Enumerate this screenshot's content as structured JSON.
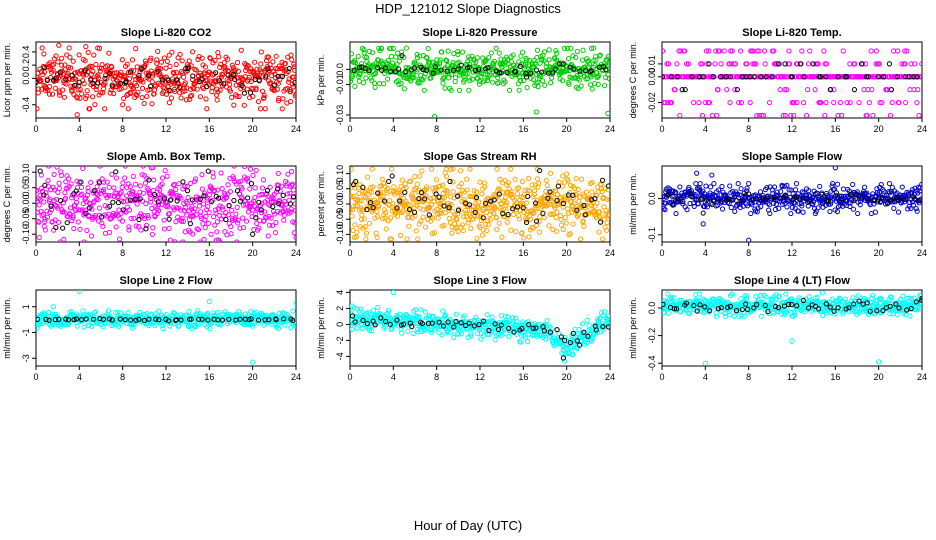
{
  "figure": {
    "title": "HDP_121012  Slope Diagnostics",
    "xlabel": "Hour of Day (UTC)"
  },
  "chart_data": [
    {
      "type": "scatter",
      "title": "Slope Li-820 CO2",
      "ylabel": "Licor ppm per min.",
      "xlim": [
        0,
        24
      ],
      "xticks": [
        "0",
        "4",
        "8",
        "12",
        "16",
        "20",
        "24"
      ],
      "ylim": [
        -0.6,
        0.55
      ],
      "yticks": [
        -0.4,
        0.0,
        0.2,
        0.4
      ],
      "ytick_labels": [
        "-0.4",
        "0.0",
        "0.2",
        "0.4"
      ],
      "series": [
        {
          "name": "all",
          "color": "#ff0000",
          "n": 560,
          "center": 0.0,
          "spread": 0.2,
          "outliers": [
            [
              2.1,
              0.5
            ],
            [
              3.8,
              -0.55
            ],
            [
              4.6,
              0.48
            ],
            [
              9.2,
              0.45
            ],
            [
              23.5,
              -0.35
            ]
          ]
        },
        {
          "name": "hourly",
          "color": "#000000",
          "n": 55,
          "center": 0.0,
          "spread": 0.1,
          "outliers": []
        }
      ]
    },
    {
      "type": "scatter",
      "title": "Slope Li-820 Pressure",
      "ylabel": "kPa per min.",
      "xlim": [
        0,
        24
      ],
      "xticks": [
        "0",
        "4",
        "8",
        "12",
        "16",
        "20",
        "24"
      ],
      "ylim": [
        -0.032,
        0.018
      ],
      "yticks": [
        -0.03,
        -0.01,
        0.0
      ],
      "ytick_labels": [
        "-0.03",
        "-0.01",
        "0.0"
      ],
      "series": [
        {
          "name": "all",
          "color": "#00cc00",
          "n": 560,
          "center": 0.0,
          "spread": 0.006,
          "outliers": [
            [
              1.3,
              0.013
            ],
            [
              5.2,
              0.014
            ],
            [
              7.8,
              -0.031
            ],
            [
              17.2,
              -0.028
            ],
            [
              23.8,
              -0.029
            ],
            [
              22.5,
              0.014
            ]
          ]
        },
        {
          "name": "hourly",
          "color": "#000000",
          "n": 55,
          "center": 0.0,
          "spread": 0.0018,
          "outliers": [
            [
              4.8,
              0.009
            ],
            [
              16.3,
              -0.005
            ]
          ]
        }
      ]
    },
    {
      "type": "scatter",
      "title": "Slope Li-820 Temp.",
      "ylabel": "degrees C per min.",
      "xlim": [
        0,
        24
      ],
      "xticks": [
        "0",
        "4",
        "8",
        "12",
        "16",
        "20",
        "24"
      ],
      "ylim": [
        -0.032,
        0.027
      ],
      "yticks": [
        -0.02,
        0.0,
        0.01
      ],
      "ytick_labels": [
        "-0.02",
        "0.00",
        "0.01"
      ],
      "series": [
        {
          "name": "all",
          "color": "#ff00ff",
          "n": 380,
          "center": 0.0,
          "spread": 0.0,
          "levels": [
            -0.03,
            -0.02,
            -0.01,
            0.0,
            0.01,
            0.02
          ],
          "level_weights": [
            0.06,
            0.1,
            0.08,
            0.55,
            0.14,
            0.07
          ]
        },
        {
          "name": "hourly",
          "color": "#000000",
          "n": 48,
          "center": 0.0,
          "spread": 0.0,
          "levels": [
            -0.01,
            0.0,
            0.01
          ],
          "level_weights": [
            0.08,
            0.84,
            0.08
          ]
        }
      ]
    },
    {
      "type": "scatter",
      "title": "Slope Amb. Box Temp.",
      "ylabel": "degrees C per min.",
      "xlim": [
        0,
        24
      ],
      "xticks": [
        "0",
        "4",
        "8",
        "12",
        "16",
        "20",
        "24"
      ],
      "ylim": [
        -0.125,
        0.12
      ],
      "yticks": [
        -0.1,
        -0.05,
        0.0,
        0.05,
        0.1
      ],
      "ytick_labels": [
        "-0.10",
        "-0.05",
        "0.00",
        "0.05",
        "0.10"
      ],
      "series": [
        {
          "name": "all",
          "color": "#ff00ff",
          "n": 560,
          "center": 0.0,
          "spread": 0.055,
          "outliers": [
            [
              10.8,
              0.115
            ],
            [
              19.8,
              0.11
            ],
            [
              0.3,
              -0.11
            ],
            [
              24.0,
              -0.11
            ]
          ]
        },
        {
          "name": "hourly",
          "color": "#000000",
          "n": 60,
          "center": 0.0,
          "spread": 0.045,
          "outliers": [
            [
              20.0,
              -0.1
            ]
          ]
        }
      ]
    },
    {
      "type": "scatter",
      "title": "Slope Gas Stream RH",
      "ylabel": "percent per min.",
      "xlim": [
        0,
        24
      ],
      "xticks": [
        "0",
        "4",
        "8",
        "12",
        "16",
        "20",
        "24"
      ],
      "ylim": [
        -0.125,
        0.125
      ],
      "yticks": [
        -0.1,
        -0.05,
        0.0,
        0.05,
        0.1
      ],
      "ytick_labels": [
        "-0.10",
        "-0.05",
        "0.00",
        "0.05",
        "0.10"
      ],
      "series": [
        {
          "name": "all",
          "color": "#ffa500",
          "n": 640,
          "center": 0.0,
          "spread": 0.05,
          "outliers": [
            [
              0.4,
              -0.11
            ],
            [
              2.5,
              -0.11
            ],
            [
              9.5,
              0.115
            ],
            [
              17.3,
              0.115
            ]
          ]
        },
        {
          "name": "hourly",
          "color": "#000000",
          "n": 60,
          "center": 0.0,
          "spread": 0.04,
          "outliers": [
            [
              17.5,
              0.11
            ]
          ]
        }
      ]
    },
    {
      "type": "scatter",
      "title": "Slope Sample Flow",
      "ylabel": "ml/min per min.",
      "xlim": [
        0,
        24
      ],
      "xticks": [
        "0",
        "4",
        "8",
        "12",
        "16",
        "20",
        "24"
      ],
      "ylim": [
        -0.12,
        0.09
      ],
      "yticks": [
        -0.1,
        0.0
      ],
      "ytick_labels": [
        "-0.1",
        "0.0"
      ],
      "series": [
        {
          "name": "all",
          "color": "#0000cc",
          "n": 520,
          "center": 0.0,
          "spread": 0.018,
          "outliers": [
            [
              3.2,
              0.07
            ],
            [
              3.8,
              -0.07
            ],
            [
              4.6,
              0.065
            ],
            [
              8.0,
              -0.115
            ],
            [
              16.0,
              0.085
            ]
          ]
        },
        {
          "name": "hourly",
          "color": "#000000",
          "n": 55,
          "center": 0.0,
          "spread": 0.008,
          "outliers": [
            [
              1.0,
              -0.018
            ],
            [
              3.8,
              -0.04
            ]
          ]
        }
      ]
    },
    {
      "type": "scatter",
      "title": "Slope Line 2 Flow",
      "ylabel": "ml/min per min.",
      "xlim": [
        0,
        24
      ],
      "xticks": [
        "0",
        "4",
        "8",
        "12",
        "16",
        "20",
        "24"
      ],
      "ylim": [
        -3.6,
        2.3
      ],
      "yticks": [
        -3,
        -1,
        1
      ],
      "ytick_labels": [
        "-3",
        "-1",
        "1"
      ],
      "series": [
        {
          "name": "all",
          "color": "#00ffff",
          "n": 480,
          "center": 0.0,
          "spread": 0.3,
          "outliers": [
            [
              4.0,
              2.2
            ],
            [
              1.6,
              1.0
            ],
            [
              20.0,
              -3.3
            ],
            [
              16.0,
              1.4
            ],
            [
              24.0,
              1.3
            ]
          ]
        },
        {
          "name": "hourly",
          "color": "#000000",
          "n": 52,
          "center": 0.0,
          "spread": 0.04,
          "outliers": []
        }
      ]
    },
    {
      "type": "scatter",
      "title": "Slope Line 3 Flow",
      "ylabel": "ml/min per min.",
      "xlim": [
        0,
        24
      ],
      "xticks": [
        "0",
        "4",
        "8",
        "12",
        "16",
        "20",
        "24"
      ],
      "ylim": [
        -5.2,
        4.3
      ],
      "yticks": [
        -4,
        -2,
        0,
        2,
        4
      ],
      "ytick_labels": [
        "-4",
        "-2",
        "0",
        "2",
        "4"
      ],
      "series": [
        {
          "name": "all",
          "color": "#00ffff",
          "n": 520,
          "center": 0.0,
          "spread": 0.7,
          "trend": [
            [
              0,
              0.7
            ],
            [
              8,
              0.1
            ],
            [
              14,
              -0.4
            ],
            [
              18,
              -0.9
            ],
            [
              20,
              -3.0
            ],
            [
              22,
              -1.0
            ],
            [
              24,
              0.4
            ]
          ],
          "outliers": [
            [
              4.0,
              4.0
            ],
            [
              19.8,
              -4.6
            ],
            [
              20.5,
              -3.8
            ],
            [
              23.5,
              1.6
            ]
          ]
        },
        {
          "name": "hourly",
          "color": "#000000",
          "n": 55,
          "center": 0.0,
          "spread": 0.35,
          "trend": [
            [
              0,
              0.5
            ],
            [
              10,
              0.0
            ],
            [
              18,
              -0.6
            ],
            [
              20,
              -2.0
            ],
            [
              22,
              -1.0
            ],
            [
              24,
              0.0
            ]
          ],
          "outliers": [
            [
              19.7,
              -4.2
            ],
            [
              21.2,
              -2.6
            ]
          ]
        }
      ]
    },
    {
      "type": "scatter",
      "title": "Slope Line 4 (LT) Flow",
      "ylabel": "ml/min per min.",
      "xlim": [
        0,
        24
      ],
      "xticks": [
        "0",
        "4",
        "8",
        "12",
        "16",
        "20",
        "24"
      ],
      "ylim": [
        -0.42,
        0.13
      ],
      "yticks": [
        -0.4,
        -0.2,
        0.0
      ],
      "ytick_labels": [
        "-0.4",
        "-0.2",
        "0.0"
      ],
      "series": [
        {
          "name": "all",
          "color": "#00ffff",
          "n": 520,
          "center": 0.02,
          "spread": 0.035,
          "outliers": [
            [
              4.0,
              -0.4
            ],
            [
              12.0,
              -0.24
            ],
            [
              20.0,
              -0.39
            ],
            [
              14.8,
              0.11
            ]
          ]
        },
        {
          "name": "hourly",
          "color": "#000000",
          "n": 55,
          "center": 0.01,
          "spread": 0.02,
          "outliers": [
            [
              24.0,
              0.07
            ]
          ]
        }
      ]
    }
  ]
}
